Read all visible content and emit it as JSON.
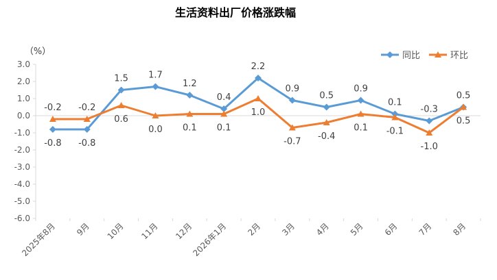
{
  "chart_data": {
    "type": "line",
    "title": "生活资料出厂价格涨跌幅",
    "unit_label": "（%）",
    "categories": [
      "2025年8月",
      "9月",
      "10月",
      "11月",
      "12月",
      "2026年1月",
      "2月",
      "3月",
      "4月",
      "5月",
      "6月",
      "7月",
      "8月"
    ],
    "ylim": [
      -6.0,
      3.0
    ],
    "yticks": [
      "3.0",
      "2.0",
      "1.0",
      "0.0",
      "-1.0",
      "-2.0",
      "-3.0",
      "-4.0",
      "-5.0",
      "-6.0"
    ],
    "ytick_values": [
      3,
      2,
      1,
      0,
      -1,
      -2,
      -3,
      -4,
      -5,
      -6
    ],
    "grid": false,
    "legend_position": "top-right",
    "series": [
      {
        "name": "同比",
        "color": "#5B9BD5",
        "marker": "diamond",
        "values": [
          -0.8,
          -0.8,
          1.5,
          1.7,
          1.2,
          0.4,
          2.2,
          0.9,
          0.5,
          0.9,
          0.1,
          -0.3,
          0.5
        ],
        "labels": [
          "-0.8",
          "-0.8",
          "1.5",
          "1.7",
          "1.2",
          "0.4",
          "2.2",
          "0.9",
          "0.5",
          "0.9",
          "0.1",
          "-0.3",
          "0.5"
        ]
      },
      {
        "name": "环比",
        "color": "#ED7D31",
        "marker": "triangle",
        "values": [
          -0.2,
          -0.2,
          0.6,
          0.0,
          0.1,
          0.1,
          1.0,
          -0.7,
          -0.4,
          0.1,
          -0.1,
          -1.0,
          0.5
        ],
        "labels": [
          "-0.2",
          "-0.2",
          "0.6",
          "0.0",
          "0.1",
          "0.1",
          "1.0",
          "-0.7",
          "-0.4",
          "0.1",
          "-0.1",
          "-1.0",
          "0.5"
        ]
      }
    ]
  }
}
